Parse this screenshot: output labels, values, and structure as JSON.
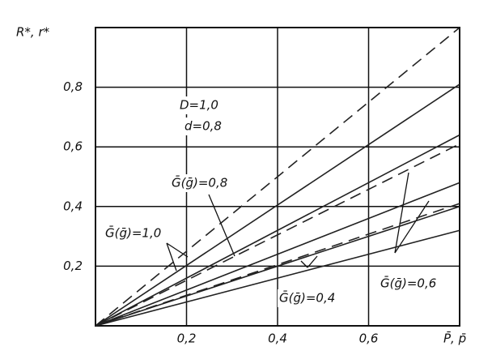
{
  "chart_data": {
    "type": "line",
    "y_label": "R*, r*",
    "x_label": "P̄, p̄",
    "x": [
      0,
      0.8
    ],
    "series": [
      {
        "color": "#222",
        "dash": true,
        "values": [
          0,
          1.0
        ]
      },
      {
        "color": "#222",
        "dash": false,
        "values": [
          0,
          0.81
        ]
      },
      {
        "color": "#222",
        "dash": false,
        "values": [
          0,
          0.64
        ]
      },
      {
        "color": "#222",
        "dash": true,
        "values": [
          0,
          0.61
        ]
      },
      {
        "color": "#222",
        "dash": false,
        "values": [
          0,
          0.48
        ]
      },
      {
        "color": "#222",
        "dash": true,
        "values": [
          0,
          0.41
        ]
      },
      {
        "color": "#222",
        "dash": false,
        "values": [
          0,
          0.4
        ]
      },
      {
        "color": "#222",
        "dash": false,
        "values": [
          0,
          0.32
        ]
      }
    ],
    "annotations": [
      "D=1,0",
      "d=0,8",
      "Ḡ(ḡ)=0,8",
      "Ḡ(ḡ)=1,0",
      "Ḡ(ḡ)=0,4",
      "Ḡ(ḡ)=0,6"
    ],
    "xlim": [
      0,
      0.8
    ],
    "ylim": [
      0,
      1.0
    ],
    "xticks": [
      {
        "value": 0.2,
        "label": "0,2"
      },
      {
        "value": 0.4,
        "label": "0,4"
      },
      {
        "value": 0.6,
        "label": "0,6"
      }
    ],
    "yticks": [
      {
        "value": 0.2,
        "label": "0,2"
      },
      {
        "value": 0.4,
        "label": "0,4"
      },
      {
        "value": 0.6,
        "label": "0,6"
      },
      {
        "value": 0.8,
        "label": "0,8"
      }
    ],
    "grid": true
  }
}
